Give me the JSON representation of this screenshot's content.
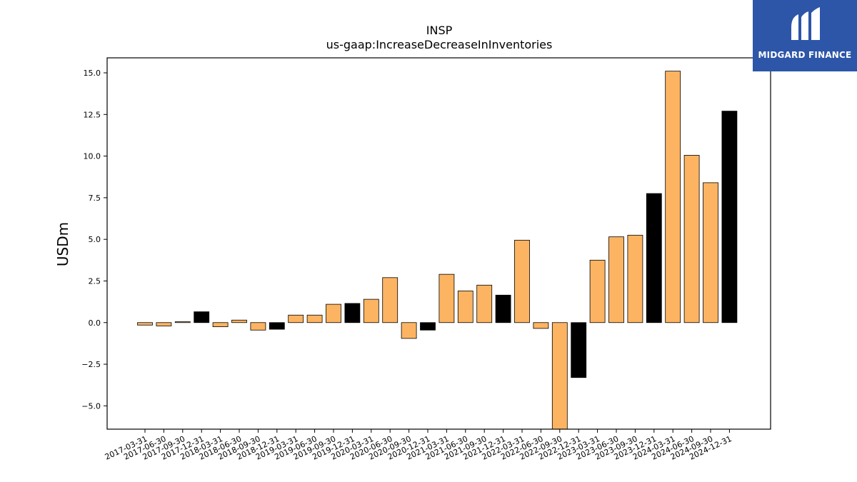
{
  "brand": {
    "name": "MIDGARD FINANCE",
    "bg_color": "#2d56a8"
  },
  "chart_data": {
    "type": "bar",
    "title": "INSP",
    "subtitle": "us-gaap:IncreaseDecreaseInInventories",
    "ylabel": "USDm",
    "xlabel": "",
    "ylim": [
      -6.4,
      15.9
    ],
    "yticks": [
      -5.0,
      -2.5,
      0.0,
      2.5,
      5.0,
      7.5,
      10.0,
      12.5,
      15.0
    ],
    "grid": false,
    "legend": "none",
    "colors": {
      "quarter": "#fdb462",
      "year_end": "#000000"
    },
    "categories": [
      "2017-03-31",
      "2017-06-30",
      "2017-09-30",
      "2017-12-31",
      "2018-03-31",
      "2018-06-30",
      "2018-09-30",
      "2018-12-31",
      "2019-03-31",
      "2019-06-30",
      "2019-09-30",
      "2019-12-31",
      "2020-03-31",
      "2020-06-30",
      "2020-09-30",
      "2020-12-31",
      "2021-03-31",
      "2021-06-30",
      "2021-09-30",
      "2021-12-31",
      "2022-03-31",
      "2022-06-30",
      "2022-09-30",
      "2022-12-31",
      "2023-03-31",
      "2023-06-30",
      "2023-09-30",
      "2023-12-31",
      "2024-03-31",
      "2024-06-30",
      "2024-09-30",
      "2024-12-31"
    ],
    "values": [
      -0.15,
      -0.2,
      0.05,
      0.65,
      -0.25,
      0.15,
      -0.45,
      -0.4,
      0.45,
      0.45,
      1.1,
      1.15,
      1.4,
      2.7,
      -0.95,
      -0.45,
      2.9,
      1.9,
      2.25,
      1.65,
      4.95,
      -0.35,
      -6.4,
      -3.3,
      3.75,
      5.15,
      5.25,
      7.75,
      15.1,
      10.05,
      8.4,
      12.7
    ],
    "year_end": [
      false,
      false,
      false,
      true,
      false,
      false,
      false,
      true,
      false,
      false,
      false,
      true,
      false,
      false,
      false,
      true,
      false,
      false,
      false,
      true,
      false,
      false,
      false,
      true,
      false,
      false,
      false,
      true,
      false,
      false,
      false,
      true
    ]
  }
}
